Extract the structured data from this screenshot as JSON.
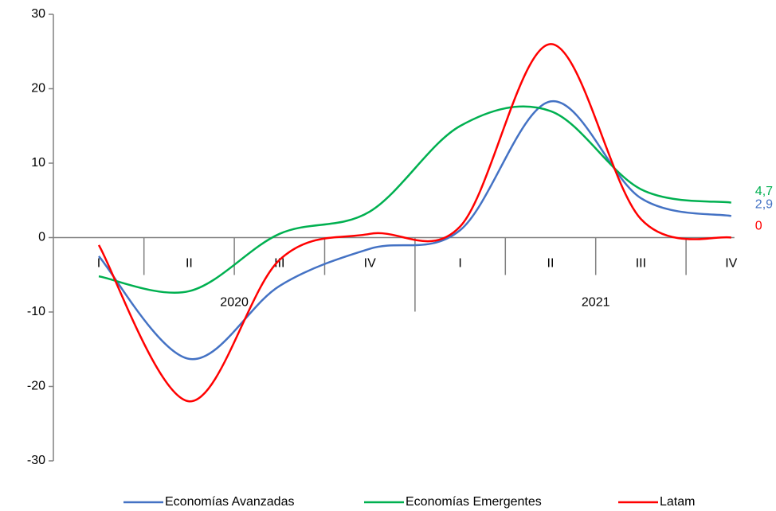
{
  "chart_data": {
    "type": "line",
    "categories": [
      "I",
      "II",
      "III",
      "IV",
      "I",
      "II",
      "III",
      "IV"
    ],
    "year_groups": [
      "2020",
      "2021"
    ],
    "series": [
      {
        "name": "Economías Avanzadas",
        "color": "#4472c4",
        "values": [
          -2.5,
          -16.3,
          -6.5,
          -1.5,
          1,
          18.3,
          5.3,
          2.9
        ],
        "value_labels": [
          null,
          null,
          null,
          null,
          null,
          null,
          null,
          "2,9"
        ]
      },
      {
        "name": "Economías Emergentes",
        "color": "#00b050",
        "values": [
          -5.2,
          -7.2,
          0.5,
          3.5,
          15,
          17,
          6.5,
          4.7
        ],
        "value_labels": [
          null,
          null,
          null,
          null,
          null,
          null,
          null,
          "4,7"
        ]
      },
      {
        "name": "Latam",
        "color": "#ff0000",
        "values": [
          -1,
          -22,
          -3,
          0.5,
          1.5,
          26,
          2.5,
          0
        ],
        "value_labels": [
          null,
          null,
          null,
          null,
          null,
          null,
          null,
          "0"
        ]
      }
    ],
    "ylim": [
      -30,
      30
    ],
    "yticks": [
      -30,
      -20,
      -10,
      0,
      10,
      20,
      30
    ],
    "grid": false,
    "legend": "bottom"
  }
}
